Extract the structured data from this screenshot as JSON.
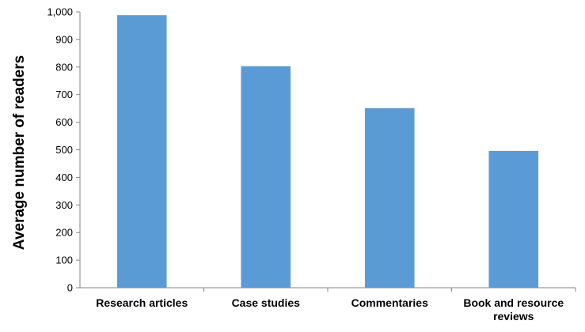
{
  "chart_data": {
    "type": "bar",
    "title": "",
    "xlabel": "",
    "ylabel": "Average number of readers",
    "ylim": [
      0,
      1000
    ],
    "yticks": [
      "0",
      "100",
      "200",
      "300",
      "400",
      "500",
      "600",
      "700",
      "800",
      "900",
      "1,000"
    ],
    "categories": [
      [
        "Research articles"
      ],
      [
        "Case studies"
      ],
      [
        "Commentaries"
      ],
      [
        "Book and resource",
        "reviews"
      ]
    ],
    "values": [
      988,
      803,
      651,
      496
    ],
    "grid": false,
    "legend": "none",
    "colors": {
      "bar": "#5b9bd5",
      "axis": "#868686"
    }
  }
}
